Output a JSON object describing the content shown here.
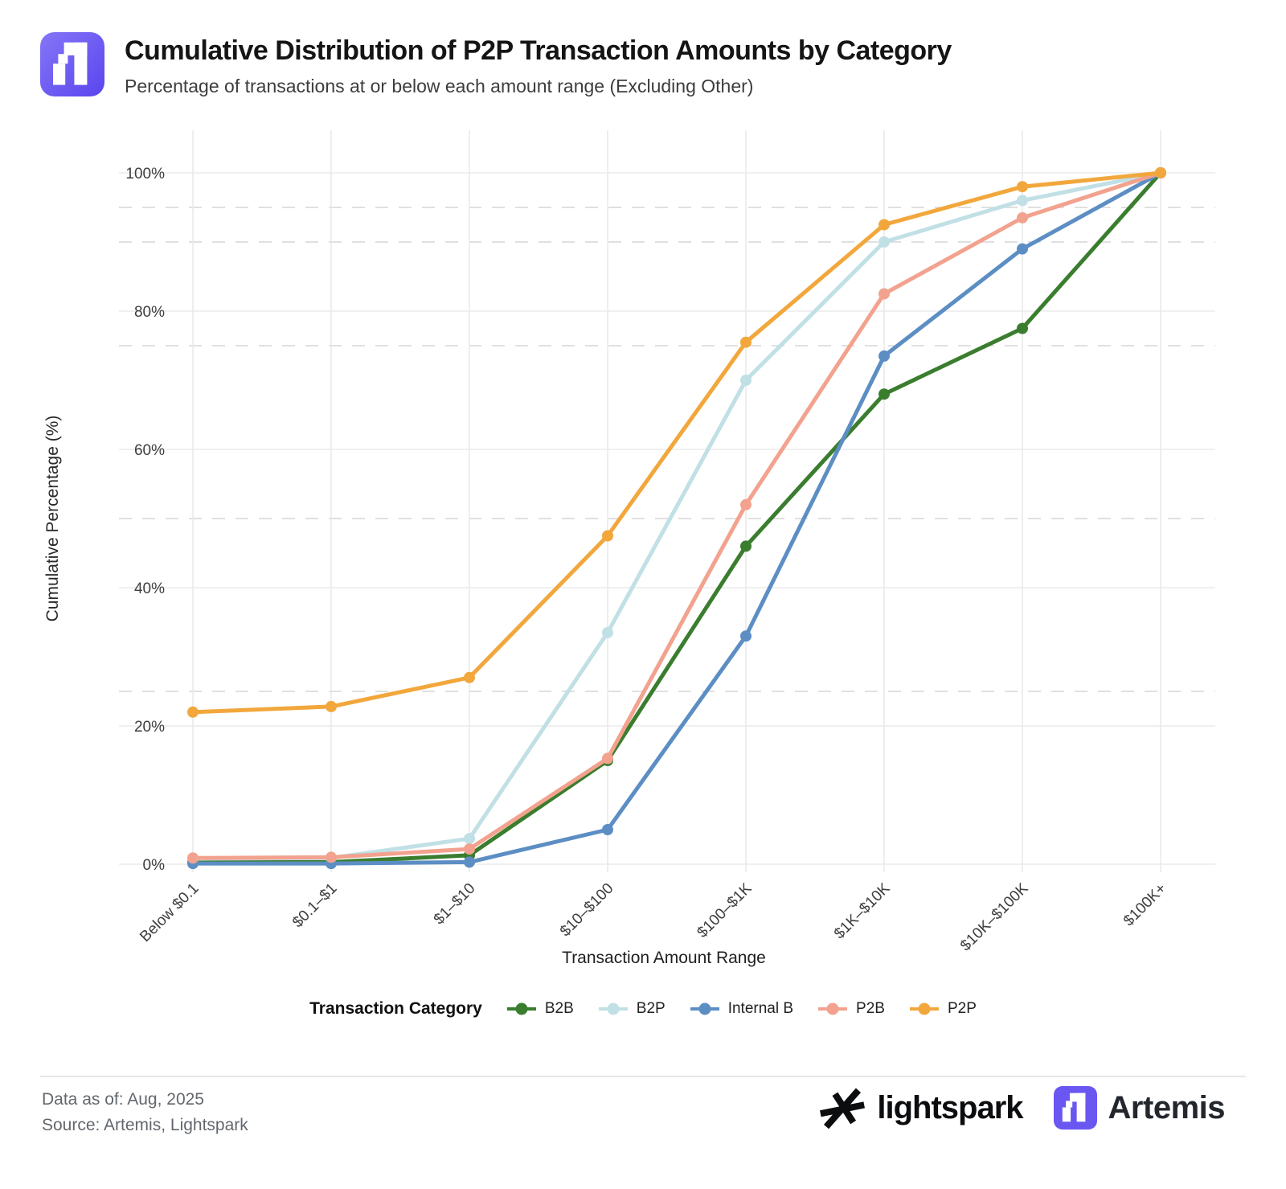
{
  "header": {
    "title": "Cumulative Distribution of P2P Transaction Amounts by Category",
    "subtitle": "Percentage of transactions at or below each amount range (Excluding Other)"
  },
  "chart_data": {
    "type": "line",
    "title": "Cumulative Distribution of P2P Transaction Amounts by Category",
    "subtitle": "Percentage of transactions at or below each amount range (Excluding Other)",
    "categories": [
      "Below $0.1",
      "$0.1–$1",
      "$1–$10",
      "$10–$100",
      "$100–$1K",
      "$1K–$10K",
      "$10K–$100K",
      "$100K+"
    ],
    "series": [
      {
        "name": "B2B",
        "color": "#3a7d2e",
        "values": [
          0.3,
          0.3,
          1.3,
          15.0,
          46.0,
          68.0,
          77.5,
          100
        ]
      },
      {
        "name": "B2P",
        "color": "#c1e0e5",
        "values": [
          0.8,
          0.9,
          3.7,
          33.5,
          70.0,
          90.0,
          96.0,
          100
        ]
      },
      {
        "name": "Internal B",
        "color": "#5c8ec4",
        "values": [
          0.1,
          0.1,
          0.3,
          5.0,
          33.0,
          73.5,
          89.0,
          100
        ]
      },
      {
        "name": "P2B",
        "color": "#f2a28e",
        "values": [
          0.9,
          1.0,
          2.2,
          15.3,
          52.0,
          82.5,
          93.5,
          100
        ]
      },
      {
        "name": "P2P",
        "color": "#f2a73c",
        "values": [
          22.0,
          22.8,
          27.0,
          47.5,
          75.5,
          92.5,
          98.0,
          100
        ]
      }
    ],
    "xlabel": "Transaction Amount Range",
    "ylabel": "Cumulative Percentage (%)",
    "ylim": [
      0,
      100
    ],
    "yticks_percent": [
      0,
      20,
      40,
      60,
      80,
      100
    ],
    "ytick_labels": [
      "0%",
      "20%",
      "40%",
      "60%",
      "80%",
      "100%"
    ],
    "dashed_gridlines_percent": [
      25,
      50,
      75,
      90,
      95
    ],
    "grid": true,
    "legend_position": "bottom",
    "legend_title": "Transaction Category"
  },
  "legend": {
    "title": "Transaction Category"
  },
  "footer": {
    "data_as_of": "Data as of: Aug, 2025",
    "source": "Source: Artemis, Lightspark",
    "lightspark_wordmark": "lightspark",
    "artemis_wordmark": "Artemis"
  }
}
